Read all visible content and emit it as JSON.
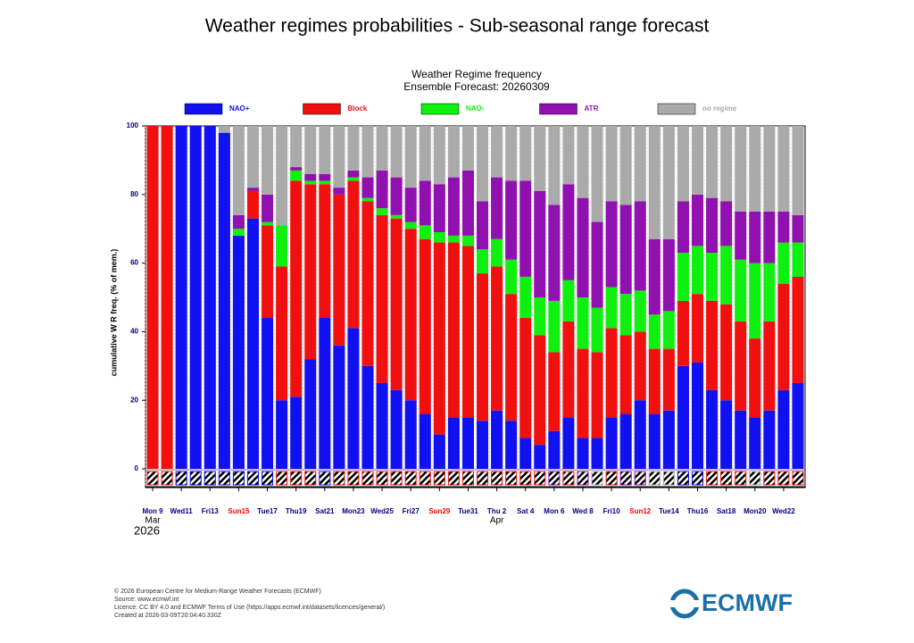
{
  "page_title": "Weather regimes probabilities - Sub-seasonal range forecast",
  "chart_data": {
    "type": "stacked-bar",
    "title": "Weather Regime frequency",
    "subtitle": "Ensemble Forecast: 20260309",
    "y_label": "cumulative W R freq. (% of mem.)",
    "ylim": [
      0,
      100
    ],
    "yticks": [
      0,
      20,
      40,
      60,
      80,
      100
    ],
    "categories": [
      "Mon 9",
      null,
      "Wed11",
      null,
      "Fri13",
      null,
      "Sun15",
      null,
      "Tue17",
      null,
      "Thu19",
      null,
      "Sat21",
      null,
      "Mon23",
      null,
      "Wed25",
      null,
      "Fri27",
      null,
      "Sun29",
      null,
      "Tue31",
      null,
      "Thu 2",
      null,
      "Sat 4",
      null,
      "Mon 6",
      null,
      "Wed 8",
      null,
      "Fri10",
      null,
      "Sun12",
      null,
      "Tue14",
      null,
      "Thu16",
      null,
      "Sat18",
      null,
      "Mon20",
      null,
      "Wed22",
      null
    ],
    "category_colors": [
      "#000080",
      null,
      "#000080",
      null,
      "#000080",
      null,
      "#ff0000",
      null,
      "#000080",
      null,
      "#000080",
      null,
      "#000080",
      null,
      "#000080",
      null,
      "#000080",
      null,
      "#000080",
      null,
      "#ff0000",
      null,
      "#000080",
      null,
      "#000080",
      null,
      "#000080",
      null,
      "#000080",
      null,
      "#000080",
      null,
      "#000080",
      null,
      "#ff0000",
      null,
      "#000080",
      null,
      "#000080",
      null,
      "#000080",
      null,
      "#000080",
      null,
      "#000080",
      null
    ],
    "months": [
      {
        "label": "Mar",
        "index": 0
      },
      {
        "label": "Apr",
        "index": 24
      }
    ],
    "year": "2026",
    "series": [
      {
        "name": "NAO+",
        "color": "#1010f0",
        "values": [
          0,
          0,
          100,
          100,
          100,
          98,
          68,
          73,
          44,
          20,
          21,
          32,
          44,
          36,
          41,
          30,
          25,
          23,
          20,
          16,
          10,
          15,
          15,
          14,
          17,
          14,
          9,
          7,
          11,
          15,
          9,
          9,
          15,
          16,
          20,
          16,
          17,
          30,
          31,
          23,
          20,
          17,
          15,
          17,
          23,
          25
        ]
      },
      {
        "name": "Block",
        "color": "#f01010",
        "values": [
          100,
          100,
          0,
          0,
          0,
          0,
          0,
          8,
          27,
          39,
          63,
          51,
          39,
          44,
          43,
          48,
          49,
          50,
          50,
          51,
          56,
          51,
          50,
          43,
          42,
          37,
          35,
          32,
          23,
          28,
          26,
          25,
          26,
          23,
          20,
          19,
          18,
          19,
          20,
          26,
          28,
          26,
          23,
          26,
          31,
          31
        ]
      },
      {
        "name": "NAO-",
        "color": "#10f010",
        "values": [
          0,
          0,
          0,
          0,
          0,
          0,
          2,
          0,
          1,
          12,
          3,
          1,
          1,
          0,
          1,
          1,
          2,
          1,
          2,
          4,
          3,
          2,
          3,
          7,
          8,
          10,
          12,
          11,
          15,
          12,
          15,
          13,
          12,
          12,
          12,
          10,
          11,
          14,
          14,
          14,
          17,
          18,
          22,
          17,
          12,
          10
        ]
      },
      {
        "name": "ATR",
        "color": "#9010b0",
        "values": [
          0,
          0,
          0,
          0,
          0,
          0,
          4,
          1,
          8,
          0,
          1,
          2,
          2,
          2,
          2,
          6,
          11,
          11,
          10,
          13,
          14,
          17,
          19,
          14,
          18,
          23,
          28,
          31,
          28,
          28,
          29,
          25,
          25,
          26,
          26,
          22,
          21,
          15,
          15,
          16,
          13,
          14,
          15,
          15,
          9,
          8
        ]
      },
      {
        "name": "no regime",
        "color": "#aaaaaa",
        "values": [
          0,
          0,
          0,
          0,
          0,
          2,
          26,
          18,
          20,
          29,
          12,
          14,
          14,
          18,
          13,
          15,
          13,
          15,
          18,
          16,
          17,
          15,
          13,
          22,
          15,
          16,
          16,
          19,
          23,
          17,
          21,
          28,
          22,
          23,
          22,
          33,
          33,
          22,
          20,
          21,
          22,
          25,
          25,
          25,
          25,
          26
        ]
      }
    ]
  },
  "footer": [
    "© 2026 European Centre for Medium-Range Weather Forecasts (ECMWF)",
    "Source: www.ecmwf.int",
    "Licence: CC BY 4.0 and ECMWF Terms of Use (https://apps.ecmwf.int/datasets/licences/general/)",
    "Created at 2026-03-09T20:04:40.330Z"
  ],
  "logo": "ECMWF"
}
